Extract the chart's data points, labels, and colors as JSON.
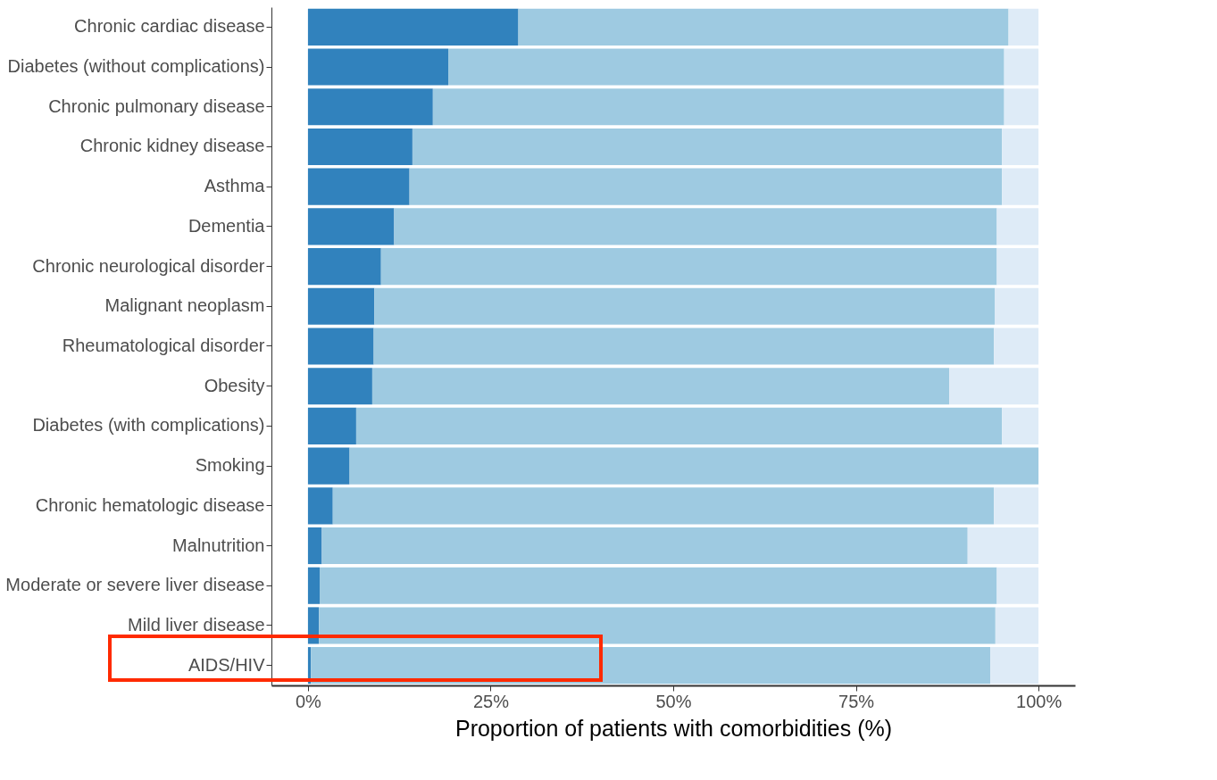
{
  "chart_data": {
    "type": "bar",
    "orientation": "horizontal",
    "stacked": true,
    "xlabel": "Proportion of patients with comorbidities (%)",
    "categories": [
      "Chronic cardiac disease",
      "Diabetes (without complications)",
      "Chronic pulmonary disease",
      "Chronic kidney disease",
      "Asthma",
      "Dementia",
      "Chronic neurological disorder",
      "Malignant neoplasm",
      "Rheumatological disorder",
      "Obesity",
      "Diabetes (with complications)",
      "Smoking",
      "Chronic hematologic disease",
      "Malnutrition",
      "Moderate or severe liver disease",
      "Mild liver disease",
      "AIDS/HIV"
    ],
    "series": [
      {
        "color": "#3182bd",
        "values": [
          28.8,
          19.2,
          17.1,
          14.3,
          13.9,
          11.8,
          10.0,
          9.1,
          9.0,
          8.8,
          6.6,
          5.7,
          3.4,
          1.9,
          1.6,
          1.5,
          0.4
        ]
      },
      {
        "color": "#9ecae1",
        "values": [
          67.1,
          76.1,
          78.2,
          80.7,
          81.1,
          82.5,
          84.3,
          84.9,
          84.9,
          79.0,
          88.4,
          94.3,
          90.5,
          88.4,
          92.7,
          92.6,
          93.0
        ]
      },
      {
        "color": "#deebf7",
        "values": [
          4.1,
          4.7,
          4.7,
          5.0,
          5.0,
          5.7,
          5.7,
          6.0,
          6.1,
          12.2,
          5.0,
          0,
          6.1,
          9.7,
          5.7,
          5.9,
          6.6
        ]
      }
    ],
    "xlim": [
      -5,
      105
    ],
    "xticks": [
      {
        "value": 0,
        "label": "0%"
      },
      {
        "value": 25,
        "label": "25%"
      },
      {
        "value": 50,
        "label": "50%"
      },
      {
        "value": 75,
        "label": "75%"
      },
      {
        "value": 100,
        "label": "100%"
      }
    ],
    "grid": false,
    "legend": false
  }
}
